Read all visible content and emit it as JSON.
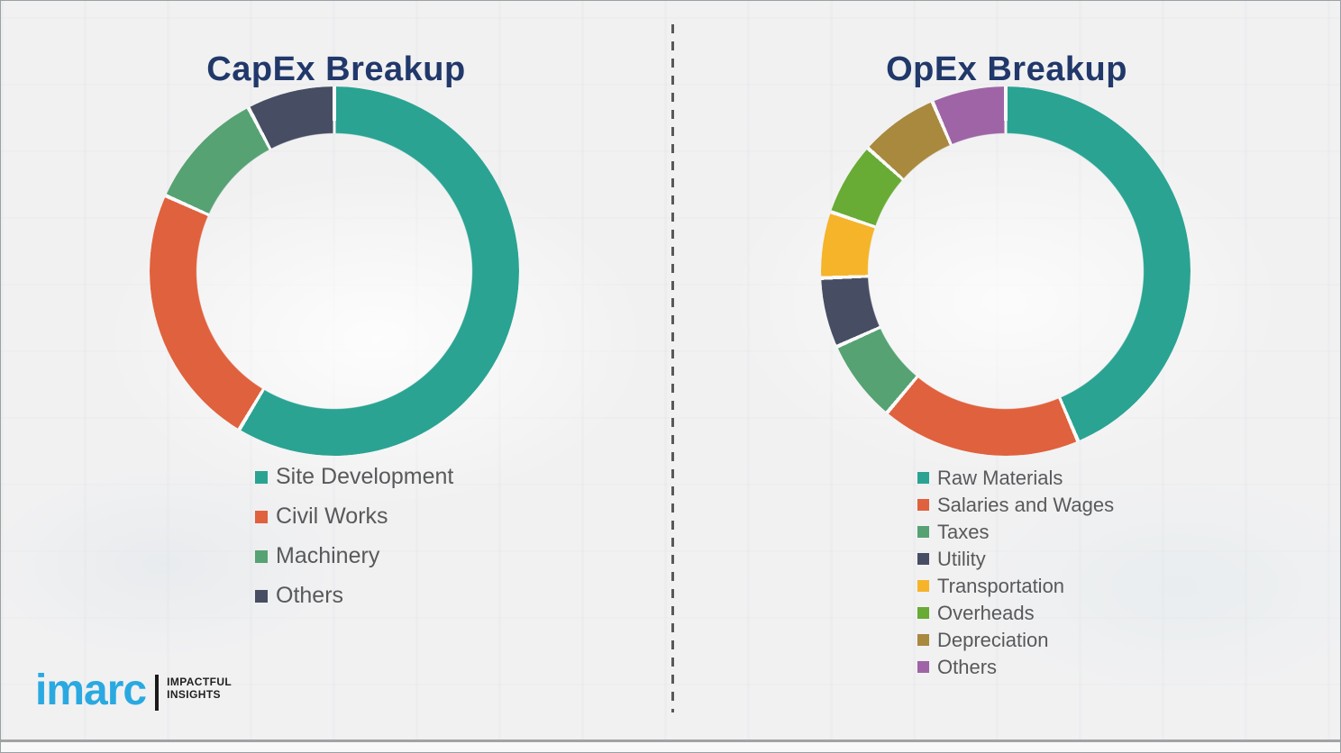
{
  "chart_data": [
    {
      "type": "pie",
      "variant": "donut",
      "title": "CapEx Breakup",
      "categories": [
        "Site Development",
        "Civil Works",
        "Machinery",
        "Others"
      ],
      "values": [
        58.6,
        23.1,
        10.6,
        7.7
      ],
      "unit": "percent-of-ring (estimated from arc angles, no labels shown)",
      "colors": [
        "#2aa392",
        "#e0613d",
        "#56a273",
        "#474d63"
      ],
      "start_angle_deg": 0,
      "direction": "clockwise",
      "inner_radius_ratio": 0.75,
      "legend_position": "below-chart-left",
      "data_labels": "none"
    },
    {
      "type": "pie",
      "variant": "donut",
      "title": "OpEx Breakup",
      "categories": [
        "Raw Materials",
        "Salaries and Wages",
        "Taxes",
        "Utility",
        "Transportation",
        "Overheads",
        "Depreciation",
        "Others"
      ],
      "values": [
        43.6,
        17.5,
        7.2,
        6.1,
        5.8,
        6.4,
        6.9,
        6.5
      ],
      "unit": "percent-of-ring (estimated from arc angles, no labels shown)",
      "colors": [
        "#2aa392",
        "#e0613d",
        "#56a273",
        "#474d63",
        "#f5b42a",
        "#68ab35",
        "#a8893e",
        "#9f64a6"
      ],
      "start_angle_deg": 0,
      "direction": "clockwise",
      "inner_radius_ratio": 0.75,
      "legend_position": "below-chart-left",
      "data_labels": "none"
    }
  ],
  "titles_color": "#21386a",
  "legend_text_color": "#58595b",
  "divider_style": "vertical-dashed",
  "logo": {
    "brand": "imarc",
    "brand_color": "#2aa9e1",
    "tagline_line1": "IMPACTFUL",
    "tagline_line2": "INSIGHTS"
  }
}
